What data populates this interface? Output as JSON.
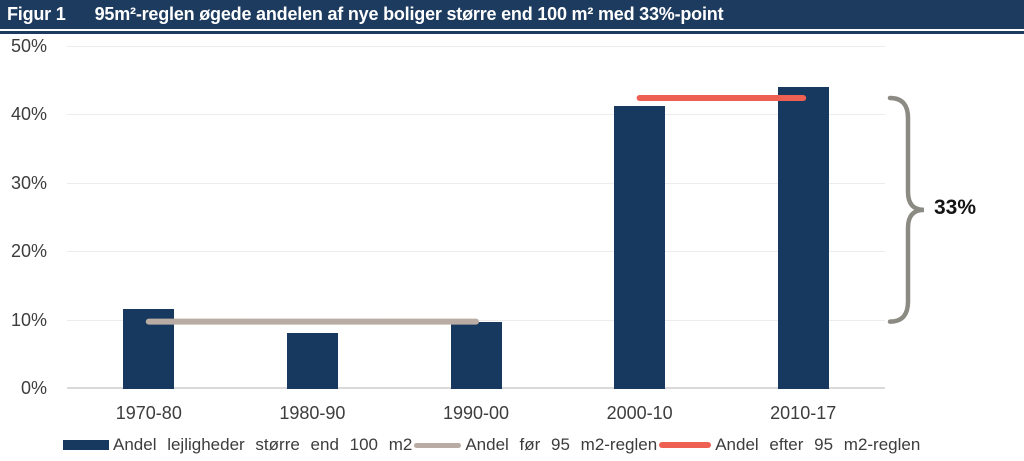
{
  "header": {
    "figure_label": "Figur 1",
    "title": "95m²-reglen øgede andelen af nye boliger større end 100 m² med 33%-point"
  },
  "chart_data": {
    "type": "bar",
    "title": "95m²-reglen øgede andelen af nye boliger større end 100 m² med 33%-point",
    "categories": [
      "1970-80",
      "1980-90",
      "1990-00",
      "2000-10",
      "2010-17"
    ],
    "values": [
      11.5,
      8,
      9.7,
      41.3,
      44
    ],
    "series_label": "Andel lejligheder større end 100 m2",
    "xlabel": "",
    "ylabel": "",
    "ylim": [
      0,
      50
    ],
    "yticks": [
      0,
      10,
      20,
      30,
      40,
      50
    ],
    "ytick_labels": [
      "0%",
      "10%",
      "20%",
      "30%",
      "40%",
      "50%"
    ],
    "grid": true,
    "legend_position": "bottom",
    "reference_lines": [
      {
        "name": "before-rule",
        "label": "Andel før 95 m2-reglen",
        "value": 9.7,
        "from_category": "1970-80",
        "to_category": "1990-00",
        "color": "#b9aca4"
      },
      {
        "name": "after-rule",
        "label": "Andel efter 95 m2-reglen",
        "value": 42.4,
        "from_category": "2000-10",
        "to_category": "2010-17",
        "color": "#ee6052"
      }
    ],
    "annotation": {
      "text": "33%",
      "from_value": 9.7,
      "to_value": 42.4,
      "side": "right"
    }
  },
  "legend": {
    "items": [
      {
        "label": "Andel lejligheder større end 100 m2",
        "swatch": "bar",
        "color": "#17395f"
      },
      {
        "label": "Andel før 95 m2-reglen",
        "swatch": "line",
        "color": "#b9aca4"
      },
      {
        "label": "Andel efter 95 m2-reglen",
        "swatch": "line",
        "color": "#ee6052"
      }
    ]
  },
  "colors": {
    "navy": "#17395f",
    "header_bg": "#1d3b5e",
    "before_line": "#b9aca4",
    "after_line": "#ee6052",
    "brace": "#8b8b83",
    "gridline": "#ececec",
    "text": "#3d3d3d"
  }
}
